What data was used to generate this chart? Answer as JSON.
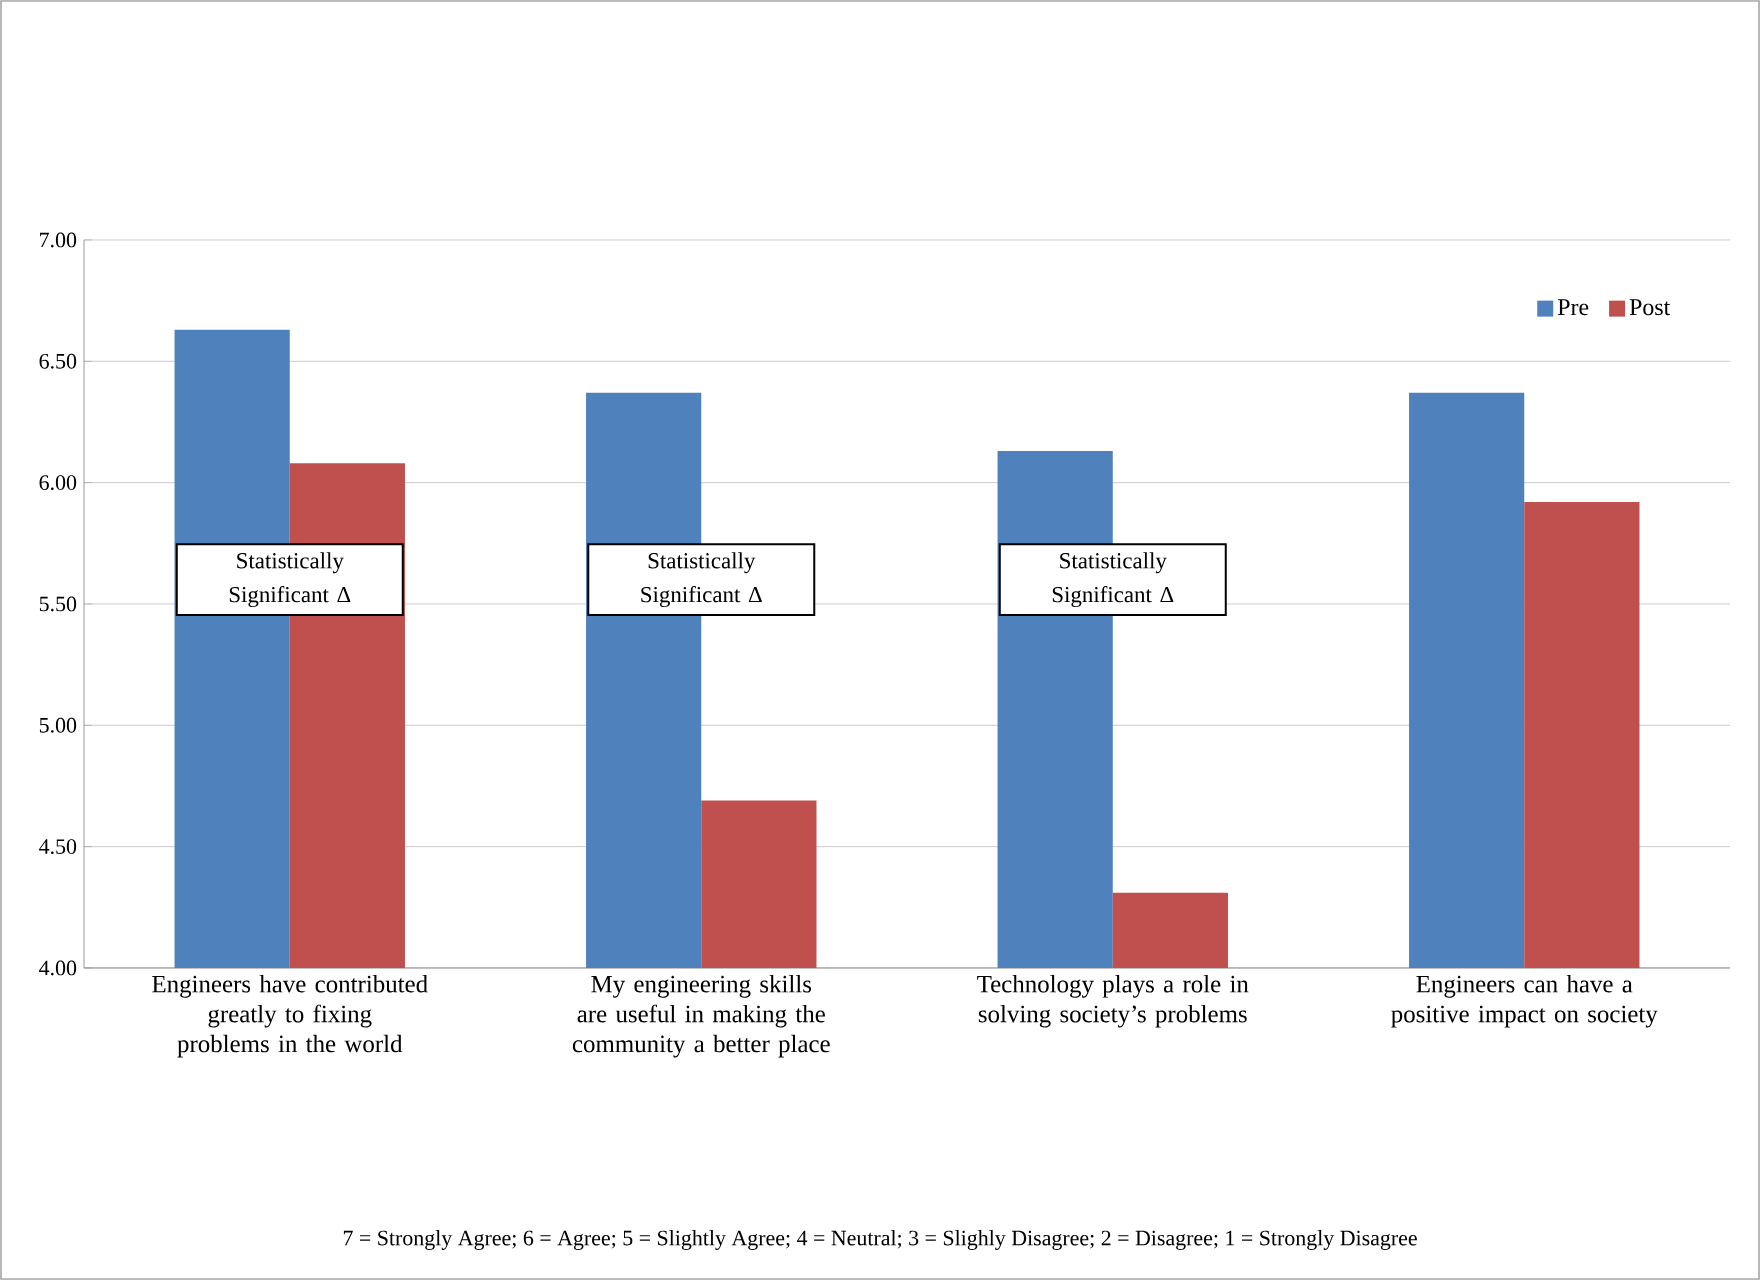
{
  "chart_data": {
    "type": "bar",
    "categories": [
      "Engineers have contributed greatly to fixing problems in the world",
      "My engineering skills are useful in making the community a better place",
      "Technology plays a role in solving society’s problems",
      "Engineers can have a positive impact on society"
    ],
    "series": [
      {
        "name": "Pre",
        "color": "#4f81bd",
        "values": [
          6.63,
          6.37,
          6.13,
          6.37
        ]
      },
      {
        "name": "Post",
        "color": "#c0504d",
        "values": [
          6.08,
          4.69,
          4.31,
          5.92
        ]
      }
    ],
    "ylim": [
      4,
      7
    ],
    "yticks": [
      {
        "value": 4,
        "label": "4.00"
      },
      {
        "value": 4.5,
        "label": "4.50"
      },
      {
        "value": 5,
        "label": "5.00"
      },
      {
        "value": 5.5,
        "label": "5.50"
      },
      {
        "value": 6,
        "label": "6.00"
      },
      {
        "value": 6.5,
        "label": "6.50"
      },
      {
        "value": 7,
        "label": "7.00"
      }
    ],
    "grid": "y",
    "legend": "top right",
    "annotations": [
      "Statistically Significant Δ",
      "Statistically Significant Δ",
      "Statistically Significant Δ",
      "7 = Strongly Agree; 6 = Agree; 5 = Slightly Agree; 4 = Neutral; 3 = Slighly Disagree; 2 = Disagree; 1 = Strongly Disagree"
    ]
  }
}
